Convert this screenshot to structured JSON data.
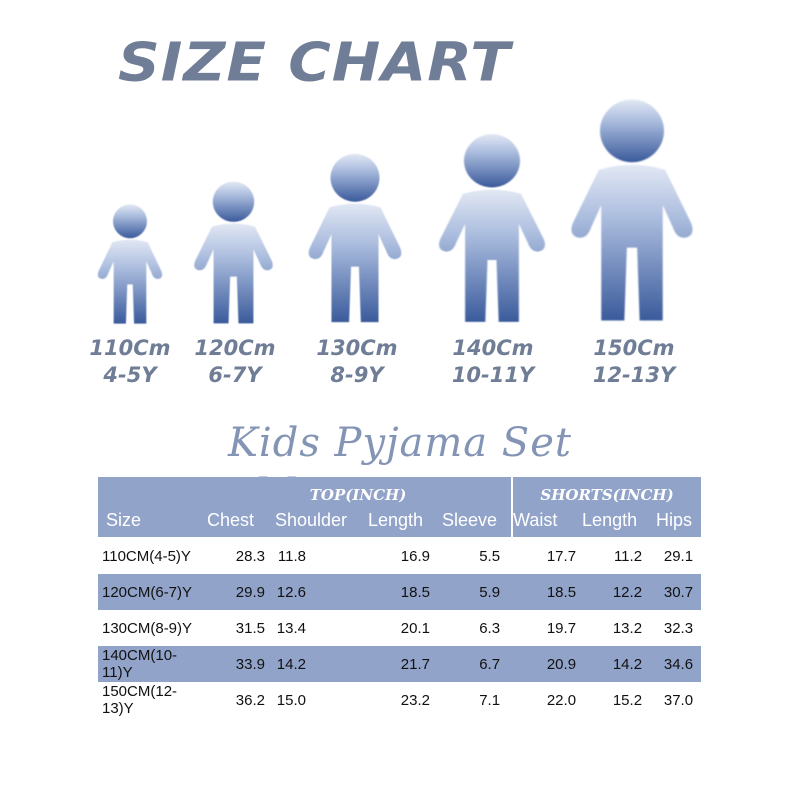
{
  "header": {
    "title": "SIZE CHART"
  },
  "figures": [
    {
      "height": "110Cm",
      "age": "4-5Y"
    },
    {
      "height": "120Cm",
      "age": "6-7Y"
    },
    {
      "height": "130Cm",
      "age": "8-9Y"
    },
    {
      "height": "140Cm",
      "age": "10-11Y"
    },
    {
      "height": "150Cm",
      "age": "12-13Y"
    }
  ],
  "subtitle": "Kids Pyjama Set Measurement",
  "table": {
    "group_top": "TOP(INCH)",
    "group_shorts": "SHORTS(INCH)",
    "columns": [
      "Size",
      "Chest",
      "Shoulder",
      "Length",
      "Sleeve",
      "Waist",
      "Length",
      "Hips"
    ],
    "rows": [
      {
        "cells": [
          "110CM(4-5)Y",
          "28.3",
          "11.8",
          "16.9",
          "5.5",
          "17.7",
          "11.2",
          "29.1"
        ]
      },
      {
        "cells": [
          "120CM(6-7)Y",
          "29.9",
          "12.6",
          "18.5",
          "5.9",
          "18.5",
          "12.2",
          "30.7"
        ]
      },
      {
        "cells": [
          "130CM(8-9)Y",
          "31.5",
          "13.4",
          "20.1",
          "6.3",
          "19.7",
          "13.2",
          "32.3"
        ]
      },
      {
        "cells": [
          "140CM(10-11)Y",
          "33.9",
          "14.2",
          "21.7",
          "6.7",
          "20.9",
          "14.2",
          "34.6"
        ]
      },
      {
        "cells": [
          "150CM(12-13)Y",
          "36.2",
          "15.0",
          "23.2",
          "7.1",
          "22.0",
          "15.2",
          "37.0"
        ]
      }
    ]
  },
  "colors": {
    "title": "#6f7d96",
    "figure_top": "#dfe6f3",
    "figure_bottom": "#3b5b9c",
    "table_header": "#91a3c9"
  }
}
